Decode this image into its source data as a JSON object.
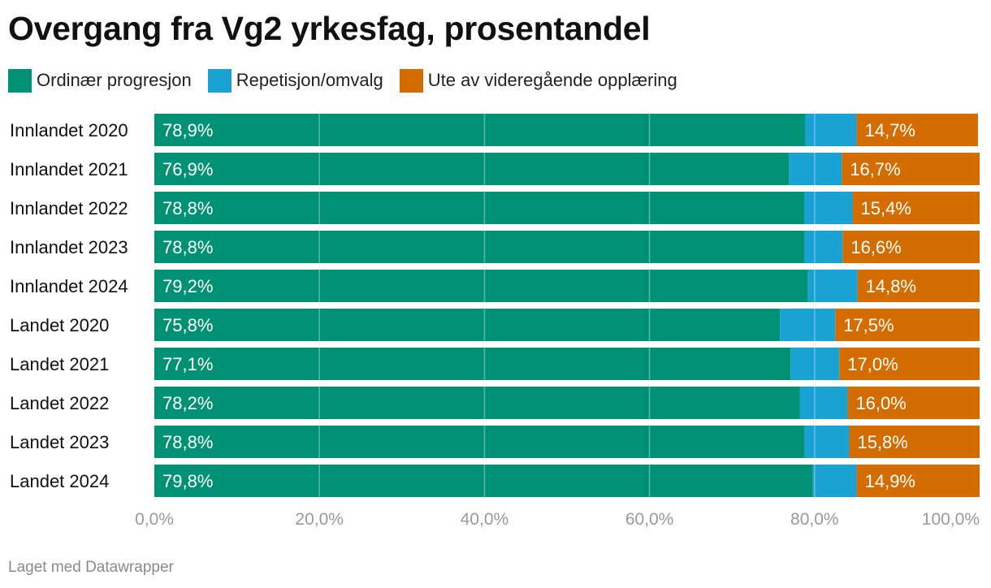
{
  "colors": {
    "ordinaer": "#009175",
    "repetisjon": "#19a2d3",
    "ute": "#d36d00",
    "grid": "#ffffff",
    "tick_label": "#9a9a9a"
  },
  "chart_data": {
    "type": "bar",
    "orientation": "horizontal",
    "stacked": true,
    "title": "Overgang fra Vg2 yrkesfag, prosentandel",
    "categories": [
      "Innlandet 2020",
      "Innlandet 2021",
      "Innlandet 2022",
      "Innlandet 2023",
      "Innlandet 2024",
      "Landet 2020",
      "Landet 2021",
      "Landet 2022",
      "Landet 2023",
      "Landet 2024"
    ],
    "series": [
      {
        "name": "Ordinær progresjon",
        "values": [
          78.9,
          76.9,
          78.8,
          78.8,
          79.2,
          75.8,
          77.1,
          78.2,
          78.8,
          79.8
        ],
        "labels": [
          "78,9%",
          "76,9%",
          "78,8%",
          "78,8%",
          "79,2%",
          "75,8%",
          "77,1%",
          "78,2%",
          "78,8%",
          "79,8%"
        ]
      },
      {
        "name": "Repetisjon/omvalg",
        "values": [
          6.2,
          6.4,
          5.8,
          4.6,
          6.0,
          6.7,
          5.9,
          5.8,
          5.4,
          5.3
        ]
      },
      {
        "name": "Ute av videregående opplæring",
        "values": [
          14.7,
          16.7,
          15.4,
          16.6,
          14.8,
          17.5,
          17.0,
          16.0,
          15.8,
          14.9
        ],
        "labels": [
          "14,7%",
          "16,7%",
          "15,4%",
          "16,6%",
          "14,8%",
          "17,5%",
          "17,0%",
          "16,0%",
          "15,8%",
          "14,9%"
        ]
      }
    ],
    "xlim": [
      0,
      100
    ],
    "xticks": [
      0,
      20,
      40,
      60,
      80,
      100
    ],
    "xtick_labels": [
      "0,0%",
      "20,0%",
      "40,0%",
      "60,0%",
      "80,0%",
      "100,0%"
    ],
    "grid": true,
    "legend_position": "top-left"
  },
  "footer": "Laget med Datawrapper"
}
